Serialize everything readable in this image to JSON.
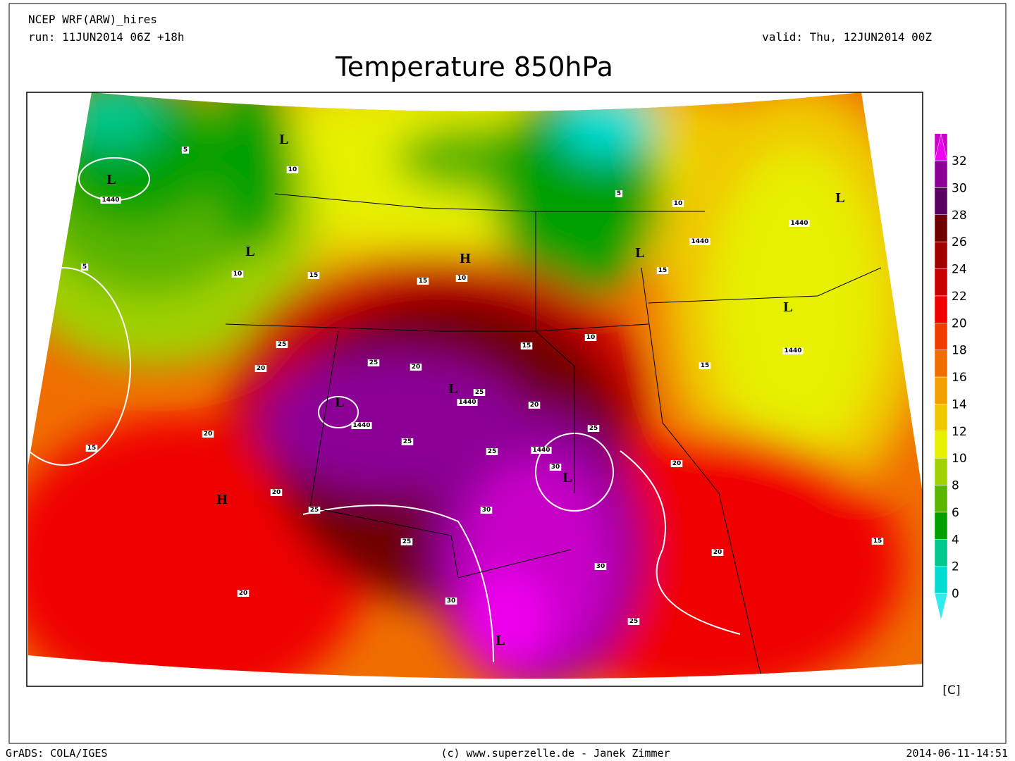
{
  "header": {
    "model": "NCEP WRF(ARW)_hires",
    "run": "run: 11JUN2014 06Z +18h",
    "valid": "valid: Thu, 12JUN2014 00Z",
    "title": "Temperature 850hPa"
  },
  "colorbar": {
    "unit": "[C]",
    "levels": [
      0,
      2,
      4,
      6,
      8,
      10,
      12,
      14,
      16,
      18,
      20,
      22,
      24,
      26,
      28,
      30,
      32
    ],
    "colors": [
      "#30ecec",
      "#00dcd2",
      "#00c88c",
      "#00a000",
      "#5ab400",
      "#a0d200",
      "#e6f000",
      "#f0c800",
      "#f0a000",
      "#f06e00",
      "#f03c00",
      "#f00000",
      "#c80000",
      "#a00000",
      "#6e0000",
      "#5a0064",
      "#8c0096",
      "#c800c8",
      "#f000f0"
    ]
  },
  "map_labels": [
    "L",
    "1440",
    5,
    5,
    "L",
    10,
    "L",
    10,
    15,
    "H",
    15,
    10,
    15,
    10,
    "L",
    15,
    10,
    5,
    "1440",
    "1440",
    "L",
    "1440",
    15,
    "L",
    25,
    20,
    25,
    20,
    "L",
    "1440",
    "L",
    "1440",
    25,
    20,
    25,
    25,
    "1440",
    25,
    30,
    "L",
    20,
    20,
    15,
    "H",
    20,
    25,
    30,
    25,
    30,
    20,
    15,
    20,
    30,
    "L",
    25
  ],
  "footer": {
    "left": "GrADS: COLA/IGES",
    "center": "(c) www.superzelle.de - Janek Zimmer",
    "right": "2014-06-11-14:51"
  }
}
